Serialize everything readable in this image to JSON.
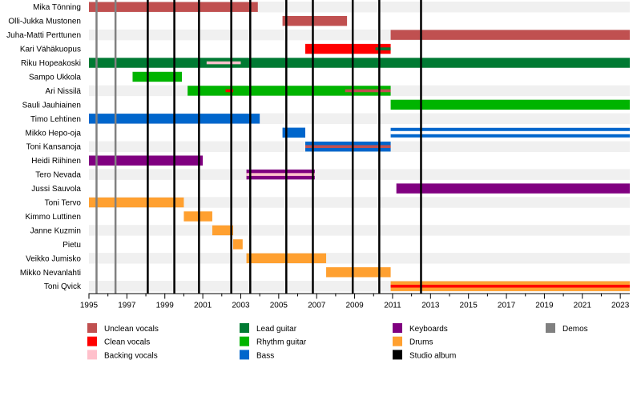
{
  "chart_data": {
    "type": "timeline",
    "x_range": [
      1995,
      2023.5
    ],
    "x_ticks": [
      "1995",
      "1997",
      "1999",
      "2001",
      "2003",
      "2005",
      "2007",
      "2009",
      "2011",
      "2013",
      "2015",
      "2017",
      "2019",
      "2021",
      "2023"
    ],
    "grid": "alternating row bands",
    "members": [
      {
        "name": "Mika Tönning",
        "bars": [
          {
            "role": "unclean",
            "start": 1995.0,
            "end": 2003.9
          }
        ]
      },
      {
        "name": "Olli-Jukka Mustonen",
        "bars": [
          {
            "role": "unclean",
            "start": 2005.2,
            "end": 2008.6
          }
        ]
      },
      {
        "name": "Juha-Matti Perttunen",
        "bars": [
          {
            "role": "unclean",
            "start": 2010.9,
            "end": 2023.5
          }
        ]
      },
      {
        "name": "Kari Vähäkuopus",
        "bars": [
          {
            "role": "clean",
            "start": 2006.4,
            "end": 2010.9
          },
          {
            "role": "lead",
            "start": 2010.1,
            "end": 2010.9,
            "accent": true
          }
        ]
      },
      {
        "name": "Riku Hopeakoski",
        "bars": [
          {
            "role": "lead",
            "start": 1995.0,
            "end": 2023.5
          },
          {
            "role": "backing",
            "start": 2001.2,
            "end": 2003.0,
            "accent": true
          }
        ]
      },
      {
        "name": "Sampo Ukkola",
        "bars": [
          {
            "role": "rhythm",
            "start": 1997.3,
            "end": 1999.9
          }
        ]
      },
      {
        "name": "Ari Nissilä",
        "bars": [
          {
            "role": "rhythm",
            "start": 2000.2,
            "end": 2010.9
          },
          {
            "role": "clean",
            "start": 2002.2,
            "end": 2002.6,
            "accent": true
          },
          {
            "role": "unclean",
            "start": 2008.5,
            "end": 2010.9,
            "accent": true
          }
        ]
      },
      {
        "name": "Sauli Jauhiainen",
        "bars": [
          {
            "role": "rhythm",
            "start": 2010.9,
            "end": 2023.5
          }
        ]
      },
      {
        "name": "Timo Lehtinen",
        "bars": [
          {
            "role": "bass",
            "start": 1995.0,
            "end": 2004.0
          }
        ]
      },
      {
        "name": "Mikko Hepo-oja",
        "bars": [
          {
            "role": "bass",
            "start": 2005.2,
            "end": 2006.4
          },
          {
            "role": "bass",
            "start": 2010.9,
            "end": 2023.5,
            "outlined": true
          }
        ]
      },
      {
        "name": "Toni Kansanoja",
        "bars": [
          {
            "role": "bass",
            "start": 2006.4,
            "end": 2010.9
          },
          {
            "role": "unclean",
            "start": 2006.4,
            "end": 2010.9,
            "accent": true
          }
        ]
      },
      {
        "name": "Heidi Riihinen",
        "bars": [
          {
            "role": "keyboards",
            "start": 1995.0,
            "end": 2001.0
          }
        ]
      },
      {
        "name": "Tero Nevada",
        "bars": [
          {
            "role": "keyboards",
            "start": 2003.3,
            "end": 2006.9
          },
          {
            "role": "backing",
            "start": 2003.3,
            "end": 2006.9,
            "accent": true
          }
        ]
      },
      {
        "name": "Jussi Sauvola",
        "bars": [
          {
            "role": "keyboards",
            "start": 2011.2,
            "end": 2023.5
          }
        ]
      },
      {
        "name": "Toni Tervo",
        "bars": [
          {
            "role": "drums",
            "start": 1995.0,
            "end": 2000.0
          }
        ]
      },
      {
        "name": "Kimmo Luttinen",
        "bars": [
          {
            "role": "drums",
            "start": 2000.0,
            "end": 2001.5
          }
        ]
      },
      {
        "name": "Janne Kuzmin",
        "bars": [
          {
            "role": "drums",
            "start": 2001.5,
            "end": 2002.6
          }
        ]
      },
      {
        "name": "Pietu",
        "bars": [
          {
            "role": "drums",
            "start": 2002.6,
            "end": 2003.1
          }
        ]
      },
      {
        "name": "Veikko Jumisko",
        "bars": [
          {
            "role": "drums",
            "start": 2003.3,
            "end": 2007.5
          }
        ]
      },
      {
        "name": "Mikko Nevanlahti",
        "bars": [
          {
            "role": "drums",
            "start": 2007.5,
            "end": 2010.9
          }
        ]
      },
      {
        "name": "Toni Qvick",
        "bars": [
          {
            "role": "drums",
            "start": 2010.9,
            "end": 2023.5
          },
          {
            "role": "clean",
            "start": 2010.9,
            "end": 2023.5,
            "accent": true
          }
        ]
      }
    ],
    "demos": [
      1995.4,
      1996.4
    ],
    "studio_albums": [
      1998.1,
      1999.5,
      2000.8,
      2002.5,
      2003.5,
      2005.4,
      2006.8,
      2008.9,
      2010.3,
      2012.5
    ],
    "legend_columns": [
      [
        {
          "key": "unclean",
          "label": "Unclean vocals",
          "color": "#c05050"
        },
        {
          "key": "clean",
          "label": "Clean vocals",
          "color": "#ff0000"
        },
        {
          "key": "backing",
          "label": "Backing vocals",
          "color": "#ffc0cb"
        }
      ],
      [
        {
          "key": "lead",
          "label": "Lead guitar",
          "color": "#007a33"
        },
        {
          "key": "rhythm",
          "label": "Rhythm guitar",
          "color": "#00b400"
        },
        {
          "key": "bass",
          "label": "Bass",
          "color": "#0066cc"
        }
      ],
      [
        {
          "key": "keyboards",
          "label": "Keyboards",
          "color": "#800080"
        },
        {
          "key": "drums",
          "label": "Drums",
          "color": "#ffa030"
        },
        {
          "key": "album",
          "label": "Studio album",
          "color": "#000000"
        }
      ],
      [
        {
          "key": "demos",
          "label": "Demos",
          "color": "#808080"
        }
      ]
    ]
  }
}
